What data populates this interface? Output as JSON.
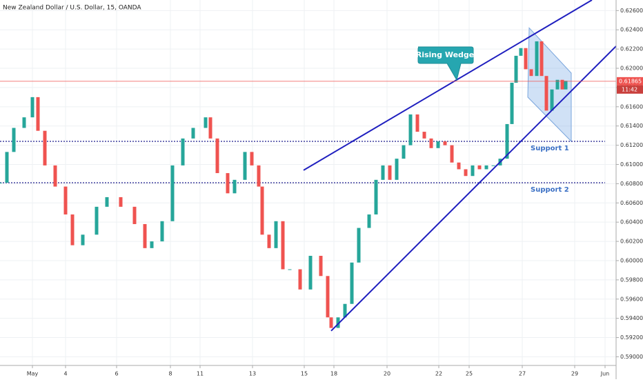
{
  "chart_data": {
    "type": "candlestick",
    "title": "New Zealand Dollar / U.S. Dollar, 15, OANDA",
    "up_color": "#26a69a",
    "down_color": "#ef5350",
    "grid": true,
    "xlim": [
      0,
      893
    ],
    "ylim": [
      0.5891,
      0.6271
    ],
    "xticks": [
      {
        "value": 47,
        "label": "May"
      },
      {
        "value": 95,
        "label": "4"
      },
      {
        "value": 169,
        "label": "6"
      },
      {
        "value": 247,
        "label": "8"
      },
      {
        "value": 290,
        "label": "11"
      },
      {
        "value": 366,
        "label": "13"
      },
      {
        "value": 441,
        "label": "15"
      },
      {
        "value": 484,
        "label": "18"
      },
      {
        "value": 561,
        "label": "20"
      },
      {
        "value": 636,
        "label": "22"
      },
      {
        "value": 680,
        "label": "25"
      },
      {
        "value": 757,
        "label": "27"
      },
      {
        "value": 833,
        "label": "29"
      },
      {
        "value": 877,
        "label": "Jun"
      }
    ],
    "yticks": [
      {
        "value": 0.59,
        "label": "0.59000"
      },
      {
        "value": 0.592,
        "label": "0.59200"
      },
      {
        "value": 0.594,
        "label": "0.59400"
      },
      {
        "value": 0.596,
        "label": "0.59600"
      },
      {
        "value": 0.598,
        "label": "0.59800"
      },
      {
        "value": 0.6,
        "label": "0.60000"
      },
      {
        "value": 0.602,
        "label": "0.60200"
      },
      {
        "value": 0.604,
        "label": "0.60400"
      },
      {
        "value": 0.606,
        "label": "0.60600"
      },
      {
        "value": 0.608,
        "label": "0.60800"
      },
      {
        "value": 0.61,
        "label": "0.61000"
      },
      {
        "value": 0.612,
        "label": "0.61200"
      },
      {
        "value": 0.614,
        "label": "0.61400"
      },
      {
        "value": 0.616,
        "label": "0.61600"
      },
      {
        "value": 0.618,
        "label": "0.61800"
      },
      {
        "value": 0.62,
        "label": "0.62000"
      },
      {
        "value": 0.622,
        "label": "0.62200"
      },
      {
        "value": 0.624,
        "label": "0.62400"
      },
      {
        "value": 0.626,
        "label": "0.62600"
      }
    ],
    "x": [
      0,
      10,
      20,
      35,
      47,
      55,
      65,
      80,
      95,
      105,
      120,
      140,
      155,
      175,
      195,
      210,
      220,
      235,
      250,
      265,
      280,
      298,
      305,
      315,
      330,
      340,
      355,
      365,
      375,
      380,
      390,
      400,
      410,
      420,
      435,
      450,
      465,
      475,
      480,
      490,
      500,
      510,
      520,
      535,
      545,
      555,
      565,
      575,
      585,
      595,
      605,
      615,
      625,
      635,
      645,
      655,
      665,
      675,
      685,
      695,
      705,
      715,
      725,
      735,
      742,
      748,
      755,
      762,
      770,
      778,
      785,
      792,
      800,
      808,
      815,
      820
    ],
    "values": [
      0.6081,
      0.6113,
      0.6138,
      0.6149,
      0.617,
      0.6135,
      0.6099,
      0.6077,
      0.6048,
      0.6016,
      0.6027,
      0.6056,
      0.6066,
      0.6056,
      0.6038,
      0.6013,
      0.602,
      0.6041,
      0.6099,
      0.6127,
      0.6138,
      0.6149,
      0.6127,
      0.6091,
      0.607,
      0.6084,
      0.6113,
      0.6099,
      0.6077,
      0.6027,
      0.6013,
      0.6041,
      0.5991,
      0.5991,
      0.597,
      0.6005,
      0.5984,
      0.5941,
      0.593,
      0.5941,
      0.5955,
      0.5998,
      0.6034,
      0.6048,
      0.6084,
      0.6099,
      0.6084,
      0.6106,
      0.612,
      0.6152,
      0.6134,
      0.6127,
      0.6117,
      0.6124,
      0.612,
      0.6102,
      0.6095,
      0.6088,
      0.6099,
      0.6095,
      0.6099,
      0.6099,
      0.6106,
      0.6142,
      0.6185,
      0.6213,
      0.6221,
      0.6199,
      0.6192,
      0.6228,
      0.6192,
      0.6156,
      0.6178,
      0.6188,
      0.6178,
      0.6187
    ],
    "price_line": {
      "value": 0.61865,
      "label": "0.61865",
      "time_label": "11:42"
    },
    "levels": [
      {
        "value": 0.6124,
        "label": "Support 1"
      },
      {
        "value": 0.6081,
        "label": "Support 2"
      }
    ],
    "trendlines": [
      {
        "x": [
          440,
          858
        ],
        "y": [
          0.6094,
          0.6271
        ]
      },
      {
        "x": [
          480,
          893
        ],
        "y": [
          0.5927,
          0.6223
        ]
      }
    ],
    "channel": {
      "x": [
        767,
        828,
        828,
        765
      ],
      "y": [
        0.6242,
        0.6195,
        0.6124,
        0.617
      ]
    },
    "annotation": "Rising Wedge"
  }
}
